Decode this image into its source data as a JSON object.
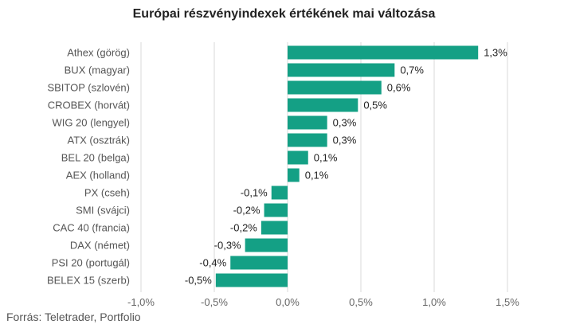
{
  "chart_data": {
    "type": "bar",
    "orientation": "horizontal",
    "title": "Európai részvényindexek értékének mai változása",
    "xlabel": "",
    "ylabel": "",
    "xlim": [
      -1.0,
      1.5
    ],
    "ticks": [
      -1.0,
      -0.5,
      0.0,
      0.5,
      1.0,
      1.5
    ],
    "tick_labels": [
      "-1,0%",
      "-0,5%",
      "0,0%",
      "0,5%",
      "1,0%",
      "1,5%"
    ],
    "grid": true,
    "legend": "none",
    "bar_color": "#14a085",
    "categories": [
      "Athex (görög)",
      "BUX (magyar)",
      "SBITOP (szlovén)",
      "CROBEX (horvát)",
      "WIG 20 (lengyel)",
      "ATX (osztrák)",
      "BEL 20 (belga)",
      "AEX (holland)",
      "PX (cseh)",
      "SMI (svájci)",
      "CAC 40 (francia)",
      "DAX (német)",
      "PSI 20 (portugál)",
      "BELEX 15 (szerb)"
    ],
    "values": [
      1.3,
      0.73,
      0.64,
      0.48,
      0.27,
      0.27,
      0.14,
      0.08,
      -0.11,
      -0.16,
      -0.18,
      -0.29,
      -0.39,
      -0.49
    ],
    "value_labels": [
      "1,3%",
      "0,7%",
      "0,6%",
      "0,5%",
      "0,3%",
      "0,3%",
      "0,1%",
      "0,1%",
      "-0,1%",
      "-0,2%",
      "-0,2%",
      "-0,3%",
      "-0,4%",
      "-0,5%"
    ]
  },
  "source": "Forrás: Teletrader, Portfolio"
}
